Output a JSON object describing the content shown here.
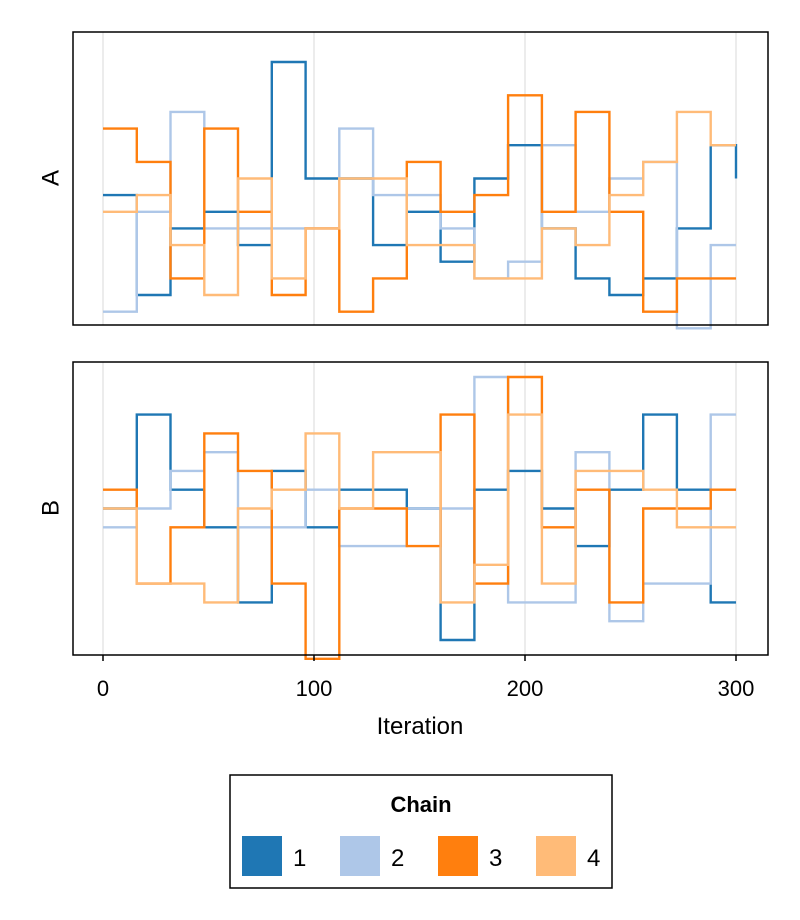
{
  "chart_data": [
    {
      "type": "line",
      "step": "post",
      "ylabel": "A",
      "xlabel": "",
      "xlim": [
        0,
        300
      ],
      "ylim": [
        0.5,
        9.3
      ],
      "x": [
        0,
        16,
        32,
        48,
        64,
        80,
        96,
        112,
        128,
        144,
        160,
        176,
        192,
        208,
        224,
        240,
        256,
        272,
        288,
        300
      ],
      "series": [
        {
          "name": "1",
          "values": [
            4.4,
            1.4,
            3.4,
            3.9,
            2.9,
            8.4,
            4.9,
            4.9,
            2.9,
            3.9,
            2.4,
            4.9,
            5.9,
            3.4,
            1.9,
            1.4,
            1.9,
            3.4,
            5.9,
            4.9
          ]
        },
        {
          "name": "2",
          "values": [
            0.9,
            3.9,
            6.9,
            3.4,
            3.4,
            3.4,
            3.4,
            6.4,
            4.4,
            4.4,
            3.4,
            1.9,
            2.4,
            5.9,
            3.9,
            4.9,
            5.4,
            0.4,
            2.9,
            2.9
          ]
        },
        {
          "name": "3",
          "values": [
            6.4,
            5.4,
            1.9,
            6.4,
            3.9,
            1.4,
            3.4,
            0.9,
            1.9,
            5.4,
            3.9,
            4.4,
            7.4,
            3.9,
            6.9,
            3.9,
            0.9,
            1.9,
            1.9,
            1.9
          ]
        },
        {
          "name": "4",
          "values": [
            3.9,
            4.4,
            2.9,
            1.4,
            4.9,
            1.9,
            3.4,
            4.9,
            4.9,
            2.9,
            2.9,
            1.9,
            1.9,
            3.4,
            2.9,
            4.4,
            5.4,
            6.9,
            5.9,
            5.9
          ]
        }
      ]
    },
    {
      "type": "line",
      "step": "post",
      "ylabel": "B",
      "xlabel": "Iteration",
      "xlim": [
        0,
        300
      ],
      "ylim": [
        0.5,
        8.3
      ],
      "x": [
        0,
        16,
        32,
        48,
        64,
        80,
        96,
        112,
        128,
        144,
        160,
        176,
        192,
        208,
        224,
        240,
        256,
        272,
        288,
        300
      ],
      "series": [
        {
          "name": "1",
          "values": [
            4.4,
            6.9,
            4.9,
            3.9,
            1.9,
            5.4,
            3.9,
            4.9,
            4.9,
            4.4,
            0.9,
            4.9,
            5.4,
            4.4,
            3.4,
            4.9,
            6.9,
            4.9,
            1.9,
            1.9
          ]
        },
        {
          "name": "2",
          "values": [
            3.9,
            4.4,
            5.4,
            5.9,
            3.9,
            3.9,
            4.9,
            3.4,
            3.4,
            4.4,
            4.4,
            7.9,
            1.9,
            1.9,
            5.9,
            1.4,
            2.4,
            2.4,
            6.9,
            6.9
          ]
        },
        {
          "name": "3",
          "values": [
            4.9,
            2.4,
            3.9,
            6.4,
            5.4,
            2.4,
            0.4,
            4.4,
            4.4,
            3.4,
            6.9,
            2.4,
            7.9,
            3.9,
            4.9,
            1.9,
            4.4,
            4.4,
            4.9,
            4.9
          ]
        },
        {
          "name": "4",
          "values": [
            4.4,
            2.4,
            2.4,
            1.9,
            4.4,
            4.9,
            6.4,
            4.4,
            5.9,
            5.9,
            1.9,
            2.9,
            6.9,
            2.4,
            5.4,
            5.4,
            4.9,
            3.9,
            3.9,
            3.9
          ]
        }
      ]
    }
  ],
  "x_ticks": [
    "0",
    "100",
    "200",
    "300"
  ],
  "x_tick_values": [
    0,
    100,
    200,
    300
  ],
  "legend": {
    "title": "Chain",
    "entries": [
      "1",
      "2",
      "3",
      "4"
    ]
  },
  "colors": {
    "series": [
      "#1f77b4",
      "#aec7e8",
      "#ff7f0e",
      "#ffbb78"
    ],
    "grid": "#e6e6e6",
    "frame": "#000000"
  }
}
